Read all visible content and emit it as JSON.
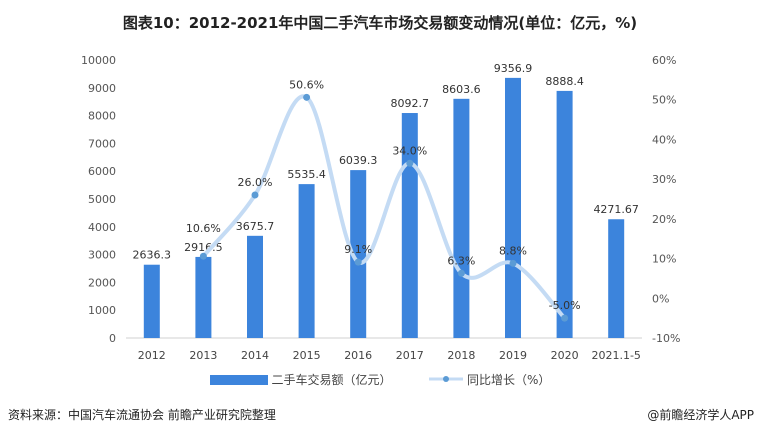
{
  "title": "图表10：2012-2021年中国二手汽车市场交易额变动情况(单位：亿元，%)",
  "footer": {
    "source": "资料来源：中国汽车流通协会 前瞻产业研究院整理",
    "credit": "@前瞻经济学人APP"
  },
  "colors": {
    "bar": "#3c84dc",
    "line": "#c4dbf4",
    "marker": "#5b9bd5"
  },
  "chart_data": {
    "type": "bar+line",
    "categories": [
      "2012",
      "2013",
      "2014",
      "2015",
      "2016",
      "2017",
      "2018",
      "2019",
      "2020",
      "2021.1-5"
    ],
    "series": [
      {
        "name": "二手车交易额（亿元）",
        "type": "bar",
        "axis": "left",
        "values": [
          2636.3,
          2916.5,
          3675.7,
          5535.4,
          6039.3,
          8092.7,
          8603.6,
          9356.9,
          8888.4,
          4271.67
        ],
        "labels": [
          "2636.3",
          "2916.5",
          "3675.7",
          "5535.4",
          "6039.3",
          "8092.7",
          "8603.6",
          "9356.9",
          "8888.4",
          "4271.67"
        ]
      },
      {
        "name": "同比增长（%）",
        "type": "line",
        "axis": "right",
        "smooth": true,
        "values": [
          null,
          10.6,
          26.0,
          50.6,
          9.1,
          34.0,
          6.3,
          8.8,
          -5.0,
          null
        ],
        "labels": [
          "",
          "10.6%",
          "26.0%",
          "50.6%",
          "9.1%",
          "34.0%",
          "6.3%",
          "8.8%",
          "-5.0%",
          ""
        ]
      }
    ],
    "left_axis": {
      "ylim": [
        0,
        10000
      ],
      "ticks": [
        "0",
        "1000",
        "2000",
        "3000",
        "4000",
        "5000",
        "6000",
        "7000",
        "8000",
        "9000",
        "10000"
      ]
    },
    "right_axis": {
      "ylim": [
        -10,
        60
      ],
      "ticks": [
        "-10%",
        "0%",
        "10%",
        "20%",
        "30%",
        "40%",
        "50%",
        "60%"
      ]
    },
    "grid": false,
    "legend": "bottom"
  }
}
